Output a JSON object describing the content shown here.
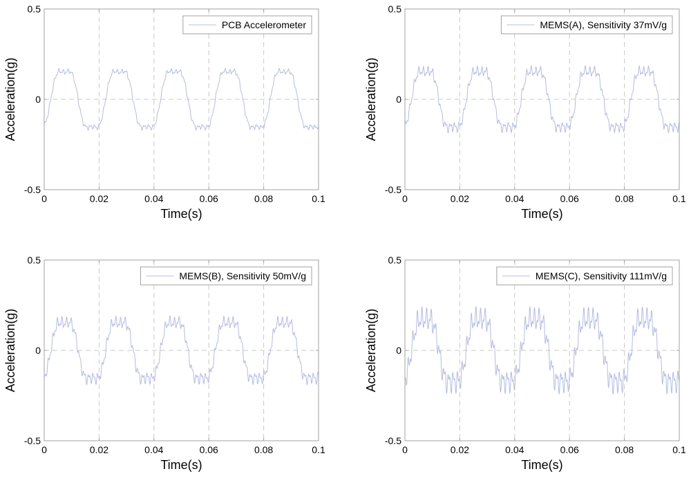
{
  "chart_data": [
    {
      "type": "line",
      "legend": "PCB Accelerometer",
      "legend_position": "top-right",
      "xlabel": "Time(s)",
      "ylabel": "Acceleration(g)",
      "xlim": [
        0,
        0.1
      ],
      "ylim": [
        -0.5,
        0.5
      ],
      "xticks": [
        "0",
        "0.02",
        "0.04",
        "0.06",
        "0.08",
        "0.1"
      ],
      "yticks": [
        "-0.5",
        "0",
        "0.5"
      ],
      "grid": "dashed",
      "line_color": "#b4bce0",
      "signal": {
        "frequency_hz": 50,
        "peak_g": 0.18,
        "noise_g": 0.015,
        "phase": -0.75
      }
    },
    {
      "type": "line",
      "legend": "MEMS(A), Sensitivity 37mV/g",
      "legend_position": "top-right",
      "xlabel": "Time(s)",
      "ylabel": "Acceleration(g)",
      "xlim": [
        0,
        0.1
      ],
      "ylim": [
        -0.5,
        0.5
      ],
      "xticks": [
        "0",
        "0.02",
        "0.04",
        "0.06",
        "0.08",
        "0.1"
      ],
      "yticks": [
        "-0.5",
        "0",
        "0.5"
      ],
      "grid": "dashed",
      "line_color": "#b4bce0",
      "signal": {
        "frequency_hz": 50,
        "peak_g": 0.18,
        "noise_g": 0.03,
        "phase": -0.75
      }
    },
    {
      "type": "line",
      "legend": "MEMS(B), Sensitivity 50mV/g",
      "legend_position": "top-right",
      "xlabel": "Time(s)",
      "ylabel": "Acceleration(g)",
      "xlim": [
        0,
        0.1
      ],
      "ylim": [
        -0.5,
        0.5
      ],
      "xticks": [
        "0",
        "0.02",
        "0.04",
        "0.06",
        "0.08",
        "0.1"
      ],
      "yticks": [
        "-0.5",
        "0",
        "0.5"
      ],
      "grid": "dashed",
      "line_color": "#b4bce0",
      "signal": {
        "frequency_hz": 50,
        "peak_g": 0.18,
        "noise_g": 0.035,
        "phase": -0.75
      }
    },
    {
      "type": "line",
      "legend": "MEMS(C), Sensitivity 111mV/g",
      "legend_position": "top-right",
      "xlabel": "Time(s)",
      "ylabel": "Acceleration(g)",
      "xlim": [
        0,
        0.1
      ],
      "ylim": [
        -0.5,
        0.5
      ],
      "xticks": [
        "0",
        "0.02",
        "0.04",
        "0.06",
        "0.08",
        "0.1"
      ],
      "yticks": [
        "-0.5",
        "0",
        "0.5"
      ],
      "grid": "dashed",
      "line_color": "#b4bce0",
      "signal": {
        "frequency_hz": 50,
        "peak_g": 0.2,
        "noise_g": 0.07,
        "phase": -0.75
      }
    }
  ]
}
